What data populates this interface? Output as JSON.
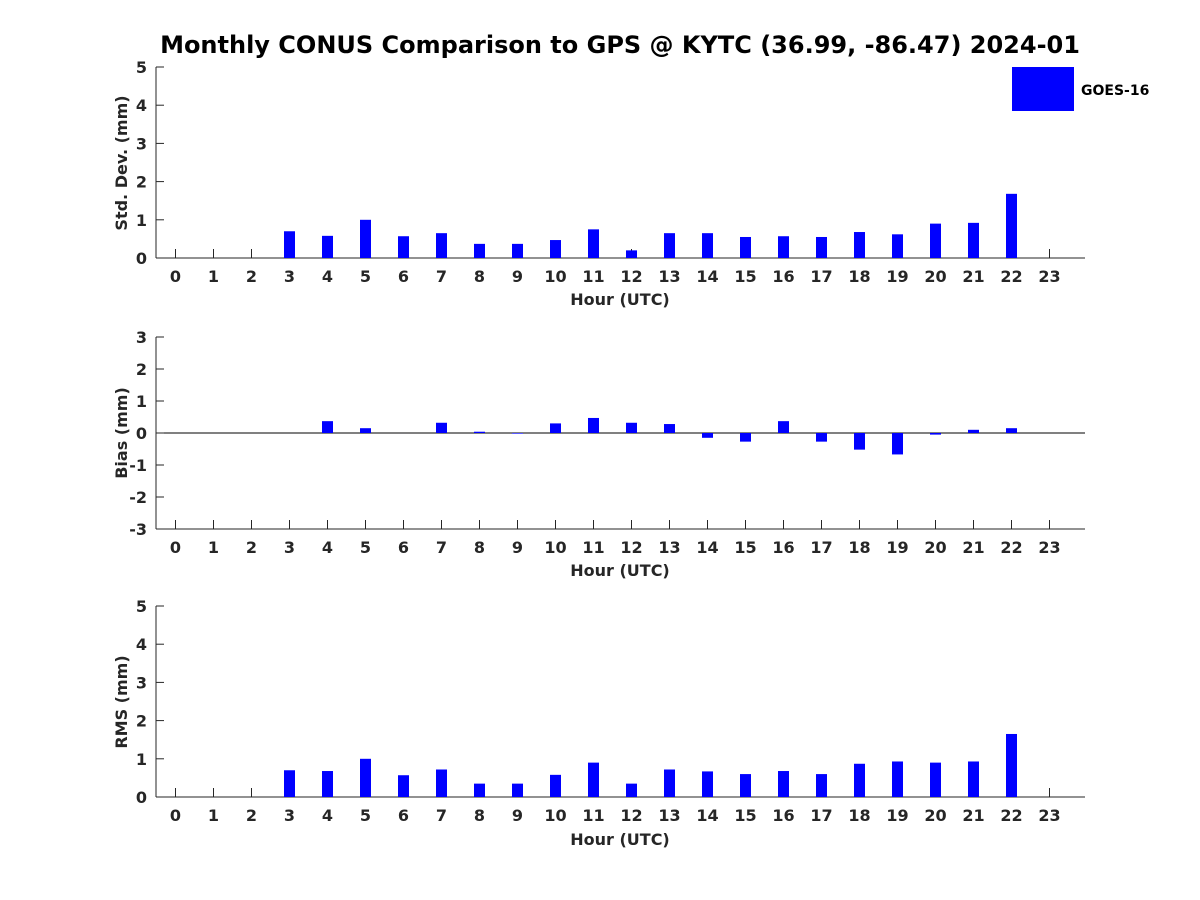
{
  "figure_title": "Monthly CONUS Comparison to GPS @ KYTC (36.99, -86.47) 2024-01",
  "colors": {
    "bar": "#0000ff",
    "axis": "#262626"
  },
  "legend": {
    "label": "GOES-16",
    "placement": "top-right"
  },
  "chart_data": [
    {
      "type": "bar",
      "name": "std-dev",
      "title": "Monthly CONUS Comparison to GPS @ KYTC (36.99, -86.47) 2024-01",
      "xlabel": "Hour (UTC)",
      "ylabel": "Std. Dev. (mm)",
      "ylim": [
        0,
        5
      ],
      "yticks": [
        0,
        1,
        2,
        3,
        4,
        5
      ],
      "categories": [
        "0",
        "1",
        "2",
        "3",
        "4",
        "5",
        "6",
        "7",
        "8",
        "9",
        "10",
        "11",
        "12",
        "13",
        "14",
        "15",
        "16",
        "17",
        "18",
        "19",
        "20",
        "21",
        "22",
        "23"
      ],
      "series": [
        {
          "name": "GOES-16",
          "values": [
            null,
            null,
            null,
            0.7,
            0.58,
            1.0,
            0.57,
            0.65,
            0.37,
            0.37,
            0.47,
            0.75,
            0.2,
            0.65,
            0.65,
            0.55,
            0.57,
            0.55,
            0.68,
            0.62,
            0.9,
            0.92,
            1.68,
            null
          ]
        }
      ]
    },
    {
      "type": "bar",
      "name": "bias",
      "xlabel": "Hour (UTC)",
      "ylabel": "Bias (mm)",
      "ylim": [
        -3,
        3
      ],
      "yticks": [
        -3,
        -2,
        -1,
        0,
        1,
        2,
        3
      ],
      "zero_line": true,
      "categories": [
        "0",
        "1",
        "2",
        "3",
        "4",
        "5",
        "6",
        "7",
        "8",
        "9",
        "10",
        "11",
        "12",
        "13",
        "14",
        "15",
        "16",
        "17",
        "18",
        "19",
        "20",
        "21",
        "22",
        "23"
      ],
      "series": [
        {
          "name": "GOES-16",
          "values": [
            null,
            null,
            null,
            0.0,
            0.37,
            0.15,
            0.0,
            0.32,
            0.04,
            -0.02,
            0.3,
            0.47,
            0.32,
            0.28,
            -0.15,
            -0.27,
            0.37,
            -0.27,
            -0.52,
            -0.67,
            -0.05,
            0.1,
            0.15,
            null
          ]
        }
      ]
    },
    {
      "type": "bar",
      "name": "rms",
      "xlabel": "Hour (UTC)",
      "ylabel": "RMS (mm)",
      "ylim": [
        0,
        5
      ],
      "yticks": [
        0,
        1,
        2,
        3,
        4,
        5
      ],
      "categories": [
        "0",
        "1",
        "2",
        "3",
        "4",
        "5",
        "6",
        "7",
        "8",
        "9",
        "10",
        "11",
        "12",
        "13",
        "14",
        "15",
        "16",
        "17",
        "18",
        "19",
        "20",
        "21",
        "22",
        "23"
      ],
      "series": [
        {
          "name": "GOES-16",
          "values": [
            null,
            null,
            null,
            0.7,
            0.68,
            1.0,
            0.57,
            0.72,
            0.35,
            0.35,
            0.58,
            0.9,
            0.35,
            0.72,
            0.67,
            0.6,
            0.68,
            0.6,
            0.87,
            0.93,
            0.9,
            0.93,
            1.65,
            null
          ]
        }
      ]
    }
  ]
}
